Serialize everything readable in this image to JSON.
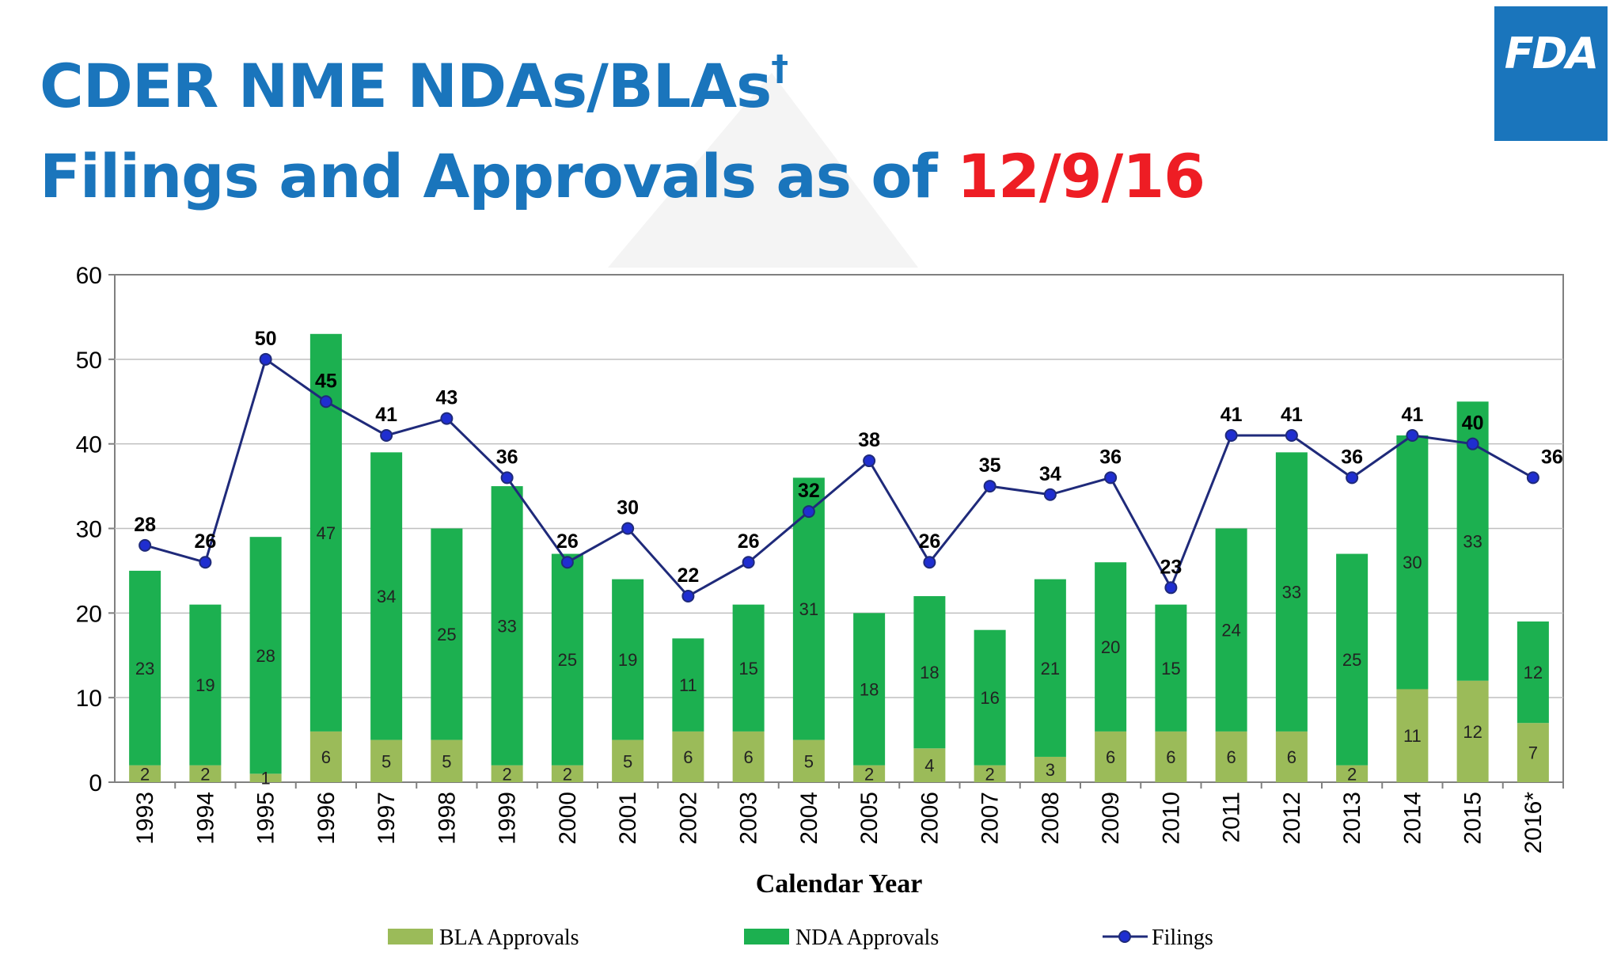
{
  "header": {
    "title_line1": "CDER NME NDAs/BLAs",
    "title_dagger": "†",
    "title_line2_prefix": "Filings and Approvals as of ",
    "title_date": "12/9/16"
  },
  "logo": {
    "text": "FDA"
  },
  "colors": {
    "title_blue": "#1a75bc",
    "date_red": "#ee1d24",
    "bla": "#9bbb59",
    "nda": "#1cb050",
    "filings_line": "#1f2a7a",
    "filings_marker": "#1f2ed0"
  },
  "chart_data": {
    "type": "bar",
    "stacked": true,
    "categories": [
      "1993",
      "1994",
      "1995",
      "1996",
      "1997",
      "1998",
      "1999",
      "2000",
      "2001",
      "2002",
      "2003",
      "2004",
      "2005",
      "2006",
      "2007",
      "2008",
      "2009",
      "2010",
      "2011",
      "2012",
      "2013",
      "2014",
      "2015",
      "2016*"
    ],
    "series": [
      {
        "name": "BLA Approvals",
        "kind": "bar",
        "color": "#9bbb59",
        "values": [
          2,
          2,
          1,
          6,
          5,
          5,
          2,
          2,
          5,
          6,
          6,
          5,
          2,
          4,
          2,
          3,
          6,
          6,
          6,
          6,
          2,
          11,
          12,
          7
        ]
      },
      {
        "name": "NDA Approvals",
        "kind": "bar",
        "color": "#1cb050",
        "values": [
          23,
          19,
          28,
          47,
          34,
          25,
          33,
          25,
          19,
          11,
          15,
          31,
          18,
          18,
          16,
          21,
          20,
          15,
          24,
          33,
          25,
          30,
          33,
          12
        ]
      },
      {
        "name": "Filings",
        "kind": "line",
        "color": "#1f2a7a",
        "values": [
          28,
          26,
          50,
          45,
          41,
          43,
          36,
          26,
          30,
          22,
          26,
          32,
          38,
          26,
          35,
          34,
          36,
          23,
          41,
          41,
          36,
          41,
          40,
          36
        ]
      }
    ],
    "xlabel": "Calendar Year",
    "ylabel": "",
    "ylim": [
      0,
      60
    ],
    "yticks": [
      0,
      10,
      20,
      30,
      40,
      50,
      60
    ],
    "grid": true,
    "legend_position": "bottom"
  }
}
